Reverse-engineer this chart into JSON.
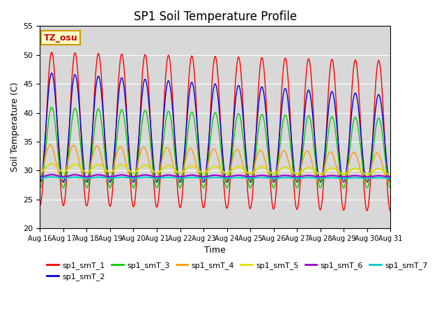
{
  "title": "SP1 Soil Temperature Profile",
  "xlabel": "Time",
  "ylabel": "Soil Temperature (C)",
  "ylim": [
    20,
    55
  ],
  "bg_color": "#d8d8d8",
  "annotation_text": "TZ_osu",
  "annotation_color": "#cc0000",
  "annotation_bg": "#ffffcc",
  "annotation_border": "#cc9900",
  "series_colors": {
    "sp1_smT_1": "#ff0000",
    "sp1_smT_2": "#0000dd",
    "sp1_smT_3": "#00cc00",
    "sp1_smT_4": "#ff9900",
    "sp1_smT_5": "#dddd00",
    "sp1_smT_6": "#9900cc",
    "sp1_smT_7": "#00cccc"
  },
  "xtick_labels": [
    "Aug 16",
    "Aug 17",
    "Aug 18",
    "Aug 19",
    "Aug 20",
    "Aug 21",
    "Aug 22",
    "Aug 23",
    "Aug 24",
    "Aug 25",
    "Aug 26",
    "Aug 27",
    "Aug 28",
    "Aug 29",
    "Aug 30",
    "Aug 31"
  ],
  "n_days": 15,
  "points_per_day": 288
}
